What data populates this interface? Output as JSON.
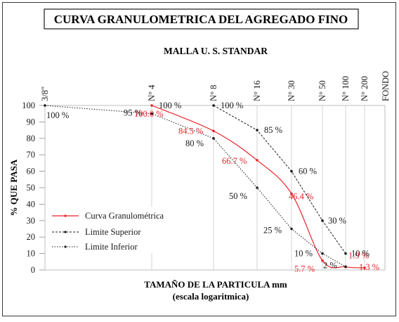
{
  "chart_data": {
    "type": "line",
    "title": "CURVA GRANULOMETRICA DEL AGREGADO FINO",
    "subtitle": "MALLA U. S. STANDAR",
    "xlabel": "TAMAÑO DE LA PARTICULA mm",
    "xlabel2": "(escala logaritmica)",
    "ylabel": "% QUE PASA",
    "x_scale": "log",
    "sieves": [
      {
        "name": "3/8\"",
        "size": 9.5
      },
      {
        "name": "N° 4",
        "size": 4.75
      },
      {
        "name": "N° 8",
        "size": 2.36
      },
      {
        "name": "N° 16",
        "size": 1.18
      },
      {
        "name": "N° 30",
        "size": 0.6
      },
      {
        "name": "N° 50",
        "size": 0.3
      },
      {
        "name": "N° 100",
        "size": 0.15
      },
      {
        "name": "N° 200",
        "size": 0.075
      },
      {
        "name": "FONDO",
        "size": null
      }
    ],
    "yticks": [
      0,
      10,
      20,
      30,
      40,
      50,
      60,
      70,
      80,
      90,
      100
    ],
    "ylim": [
      0,
      100
    ],
    "legend_position": "bottom-left",
    "series": [
      {
        "name": "Curva Granulométrica",
        "color": "#e8232a",
        "style": "solid",
        "points": [
          {
            "x": 4.75,
            "y": 100.0
          },
          {
            "x": 2.36,
            "y": 84.5
          },
          {
            "x": 1.18,
            "y": 66.7
          },
          {
            "x": 0.6,
            "y": 46.4
          },
          {
            "x": 0.3,
            "y": 5.7
          },
          {
            "x": 0.15,
            "y": 1.9
          },
          {
            "x": 0.075,
            "y": 1.3
          }
        ],
        "labels": [
          "100.0 %",
          "84.5 %",
          "66.7 %",
          "46.4 %",
          "5.7 %",
          "1.9 %",
          "1.3 %"
        ]
      },
      {
        "name": "Limite Superior",
        "color": "#1a1a1a",
        "style": "dashed",
        "points": [
          {
            "x": 2.36,
            "y": 100
          },
          {
            "x": 1.18,
            "y": 85
          },
          {
            "x": 0.6,
            "y": 60
          },
          {
            "x": 0.3,
            "y": 30
          },
          {
            "x": 0.15,
            "y": 10
          }
        ],
        "labels": [
          "100 %",
          "85 %",
          "60 %",
          "30 %",
          "10 %"
        ]
      },
      {
        "name": "Limite Inferior",
        "color": "#1a1a1a",
        "style": "dotted",
        "points": [
          {
            "x": 9.5,
            "y": 100
          },
          {
            "x": 4.75,
            "y": 95
          },
          {
            "x": 2.36,
            "y": 80
          },
          {
            "x": 1.18,
            "y": 50
          },
          {
            "x": 0.6,
            "y": 25
          },
          {
            "x": 0.3,
            "y": 10
          },
          {
            "x": 0.15,
            "y": 2
          }
        ],
        "labels": [
          "100 %",
          "95 %",
          "80 %",
          "50 %",
          "25 %",
          "10 %",
          "2 %"
        ]
      }
    ],
    "extra_labels": [
      {
        "text": "100 %",
        "near": "N° 4"
      }
    ]
  }
}
